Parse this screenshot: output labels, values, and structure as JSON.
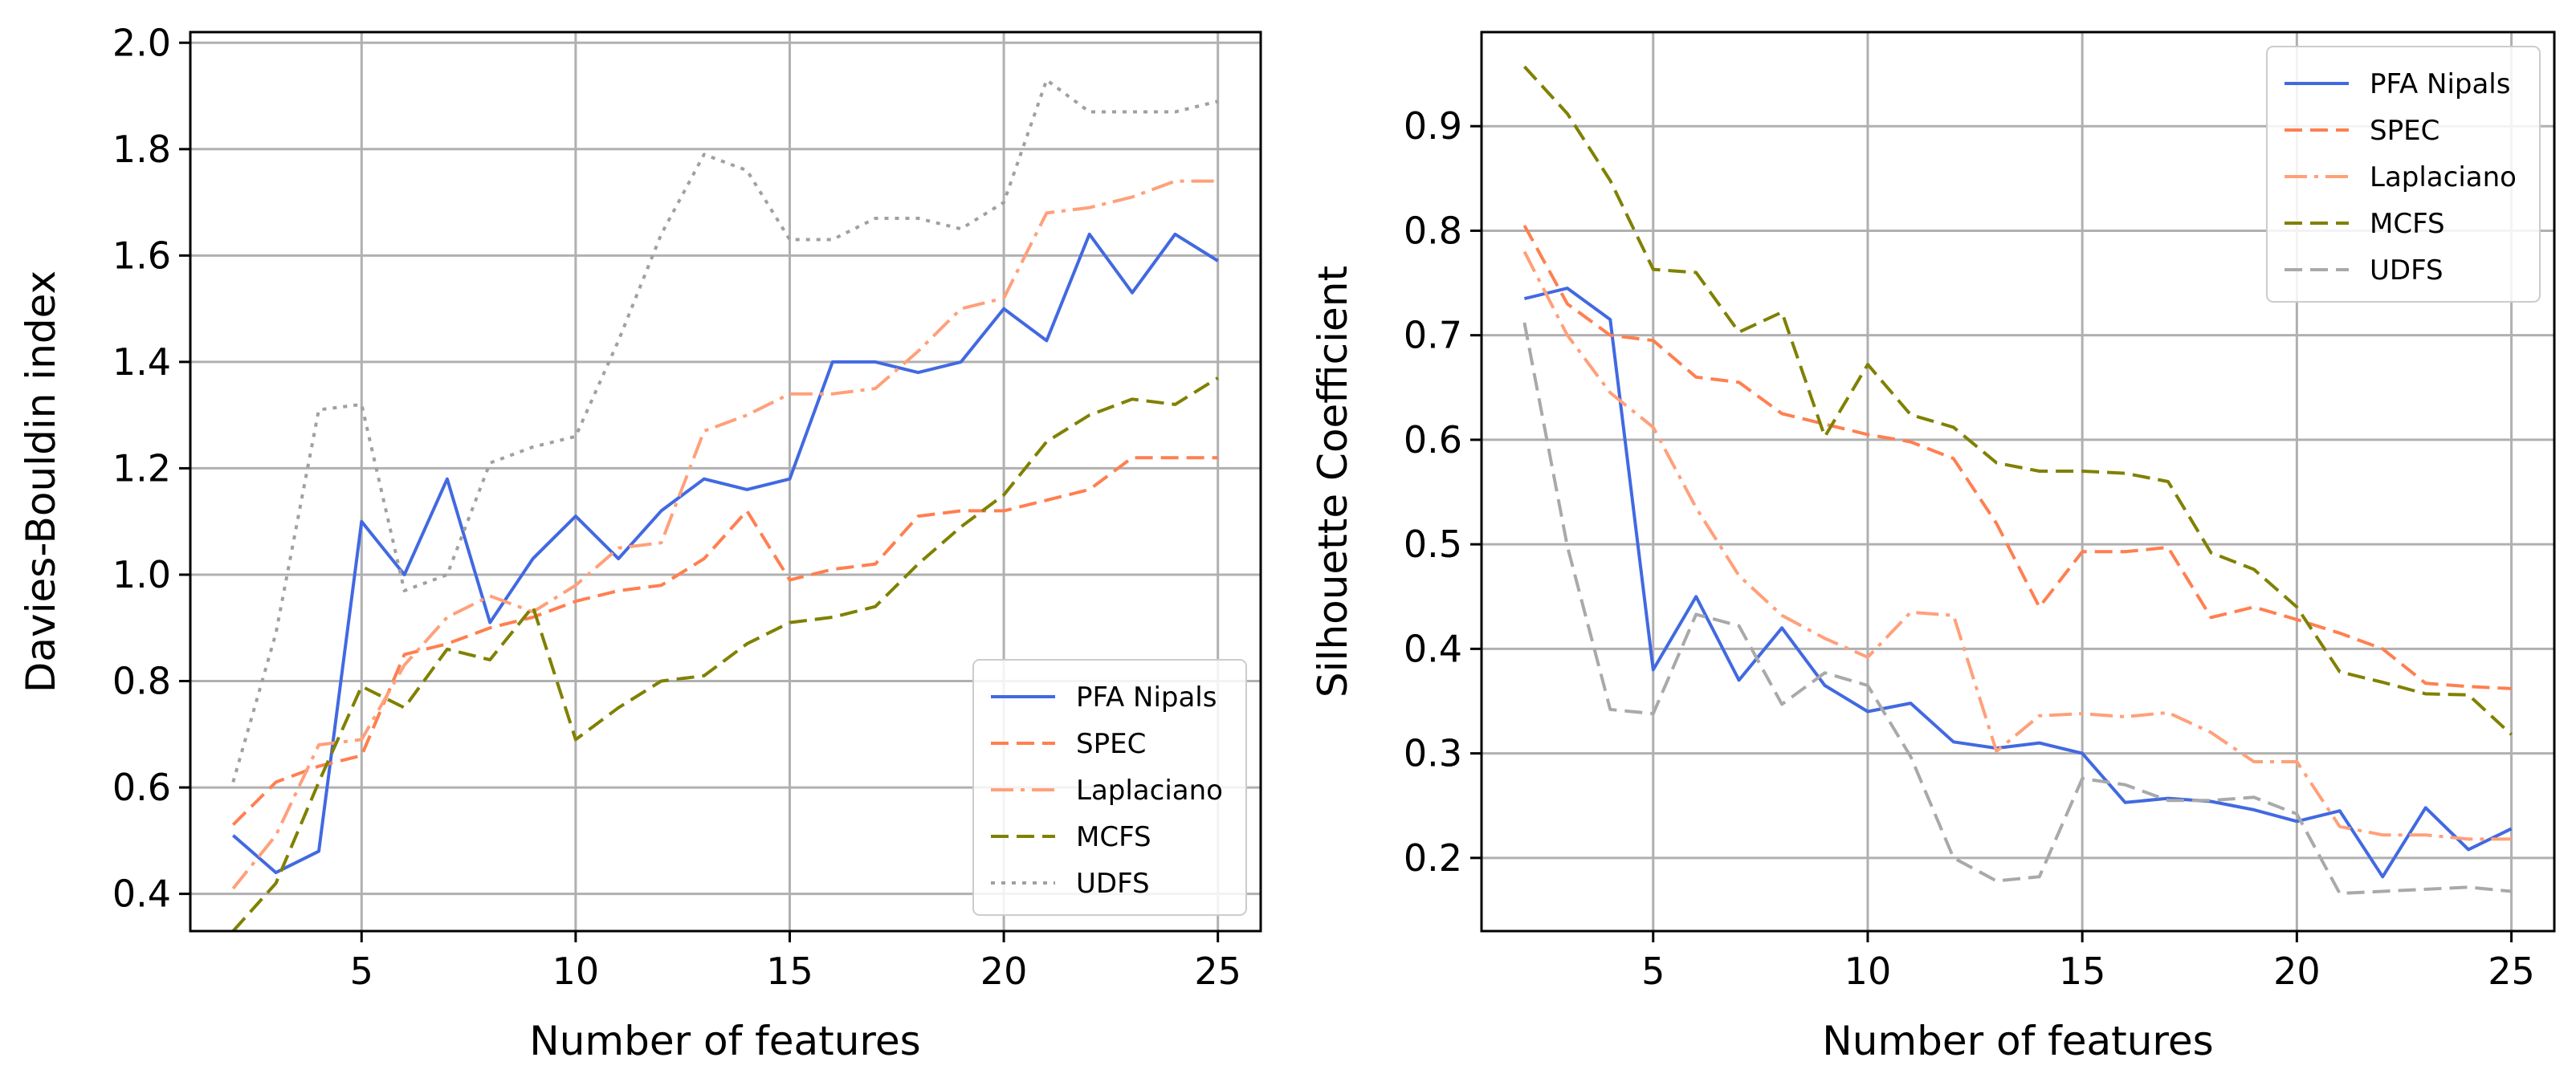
{
  "figure": {
    "background": "#ffffff",
    "grid_color": "#b0b0b0"
  },
  "chart_data": [
    {
      "type": "line",
      "title": "",
      "xlabel": "Number of features",
      "ylabel": "Davies-Bouldin index",
      "xlim": [
        1,
        26
      ],
      "ylim": [
        0.33,
        2.02
      ],
      "xticks": [
        5,
        10,
        15,
        20,
        25
      ],
      "xtick_labels": [
        "5",
        "10",
        "15",
        "20",
        "25"
      ],
      "yticks": [
        0.4,
        0.6,
        0.8,
        1.0,
        1.2,
        1.4,
        1.6,
        1.8,
        2.0
      ],
      "ytick_labels": [
        "0.4",
        "0.6",
        "0.8",
        "1.0",
        "1.2",
        "1.4",
        "1.6",
        "1.8",
        "2.0"
      ],
      "grid": true,
      "legend_position": "lower-right",
      "x": [
        2,
        3,
        4,
        5,
        6,
        7,
        8,
        9,
        10,
        11,
        12,
        13,
        14,
        15,
        16,
        17,
        18,
        19,
        20,
        21,
        22,
        23,
        24,
        25
      ],
      "series": [
        {
          "name": "PFA Nipals",
          "color": "#4169e1",
          "style": "solid",
          "values": [
            0.51,
            0.44,
            0.48,
            1.1,
            1.0,
            1.18,
            0.91,
            1.03,
            1.11,
            1.03,
            1.12,
            1.18,
            1.16,
            1.18,
            1.4,
            1.4,
            1.38,
            1.4,
            1.5,
            1.44,
            1.64,
            1.53,
            1.64,
            1.59
          ]
        },
        {
          "name": "SPEC",
          "color": "#ff7f50",
          "style": "dashed",
          "values": [
            0.53,
            0.61,
            0.64,
            0.66,
            0.85,
            0.87,
            0.9,
            0.92,
            0.95,
            0.97,
            0.98,
            1.03,
            1.12,
            0.99,
            1.01,
            1.02,
            1.11,
            1.12,
            1.12,
            1.14,
            1.16,
            1.22,
            1.22,
            1.22
          ]
        },
        {
          "name": "Laplaciano",
          "color": "#ffa07a",
          "style": "dashdot",
          "values": [
            0.41,
            0.51,
            0.68,
            0.69,
            0.83,
            0.92,
            0.96,
            0.93,
            0.98,
            1.05,
            1.06,
            1.27,
            1.3,
            1.34,
            1.34,
            1.35,
            1.42,
            1.5,
            1.52,
            1.68,
            1.69,
            1.71,
            1.74,
            1.74
          ]
        },
        {
          "name": "MCFS",
          "color": "#808000",
          "style": "dashed",
          "values": [
            0.33,
            0.42,
            0.61,
            0.79,
            0.75,
            0.86,
            0.84,
            0.94,
            0.69,
            0.75,
            0.8,
            0.81,
            0.87,
            0.91,
            0.92,
            0.94,
            1.02,
            1.09,
            1.15,
            1.25,
            1.3,
            1.33,
            1.32,
            1.37
          ]
        },
        {
          "name": "UDFS",
          "color": "#a0a0a0",
          "style": "dotted",
          "values": [
            0.61,
            0.89,
            1.31,
            1.32,
            0.97,
            1.0,
            1.21,
            1.24,
            1.26,
            1.44,
            1.64,
            1.79,
            1.76,
            1.63,
            1.63,
            1.67,
            1.67,
            1.65,
            1.7,
            1.93,
            1.87,
            1.87,
            1.87,
            1.89
          ]
        }
      ]
    },
    {
      "type": "line",
      "title": "",
      "xlabel": "Number of features",
      "ylabel": "Silhouette Coefficient",
      "xlim": [
        1,
        26
      ],
      "ylim": [
        0.13,
        0.99
      ],
      "xticks": [
        5,
        10,
        15,
        20,
        25
      ],
      "xtick_labels": [
        "5",
        "10",
        "15",
        "20",
        "25"
      ],
      "yticks": [
        0.2,
        0.3,
        0.4,
        0.5,
        0.6,
        0.7,
        0.8,
        0.9
      ],
      "ytick_labels": [
        "0.2",
        "0.3",
        "0.4",
        "0.5",
        "0.6",
        "0.7",
        "0.8",
        "0.9"
      ],
      "grid": true,
      "legend_position": "upper-right",
      "x": [
        2,
        3,
        4,
        5,
        6,
        7,
        8,
        9,
        10,
        11,
        12,
        13,
        14,
        15,
        16,
        17,
        18,
        19,
        20,
        21,
        22,
        23,
        24,
        25
      ],
      "series": [
        {
          "name": "PFA Nipals",
          "color": "#4169e1",
          "style": "solid",
          "values": [
            0.735,
            0.745,
            0.715,
            0.38,
            0.45,
            0.37,
            0.42,
            0.365,
            0.34,
            0.348,
            0.311,
            0.305,
            0.31,
            0.3,
            0.253,
            0.257,
            0.254,
            0.246,
            0.235,
            0.245,
            0.182,
            0.248,
            0.208,
            0.228
          ]
        },
        {
          "name": "SPEC",
          "color": "#ff7f50",
          "style": "dashed",
          "values": [
            0.805,
            0.73,
            0.7,
            0.695,
            0.66,
            0.655,
            0.625,
            0.615,
            0.605,
            0.598,
            0.582,
            0.52,
            0.44,
            0.493,
            0.493,
            0.497,
            0.43,
            0.44,
            0.428,
            0.415,
            0.4,
            0.367,
            0.364,
            0.362
          ]
        },
        {
          "name": "Laplaciano",
          "color": "#ffa07a",
          "style": "dashdot",
          "values": [
            0.78,
            0.7,
            0.645,
            0.612,
            0.535,
            0.47,
            0.432,
            0.41,
            0.392,
            0.435,
            0.432,
            0.302,
            0.336,
            0.338,
            0.335,
            0.339,
            0.32,
            0.292,
            0.292,
            0.23,
            0.222,
            0.222,
            0.218,
            0.218
          ]
        },
        {
          "name": "MCFS",
          "color": "#808000",
          "style": "dashed",
          "values": [
            0.957,
            0.912,
            0.848,
            0.763,
            0.76,
            0.703,
            0.722,
            0.603,
            0.672,
            0.624,
            0.612,
            0.578,
            0.57,
            0.57,
            0.568,
            0.56,
            0.492,
            0.476,
            0.44,
            0.378,
            0.368,
            0.357,
            0.356,
            0.318
          ]
        },
        {
          "name": "UDFS",
          "color": "#a9a9a9",
          "style": "dashed",
          "values": [
            0.712,
            0.498,
            0.342,
            0.338,
            0.433,
            0.422,
            0.347,
            0.377,
            0.365,
            0.297,
            0.2,
            0.178,
            0.182,
            0.276,
            0.27,
            0.255,
            0.255,
            0.258,
            0.242,
            0.166,
            0.168,
            0.17,
            0.172,
            0.168
          ]
        }
      ]
    }
  ]
}
